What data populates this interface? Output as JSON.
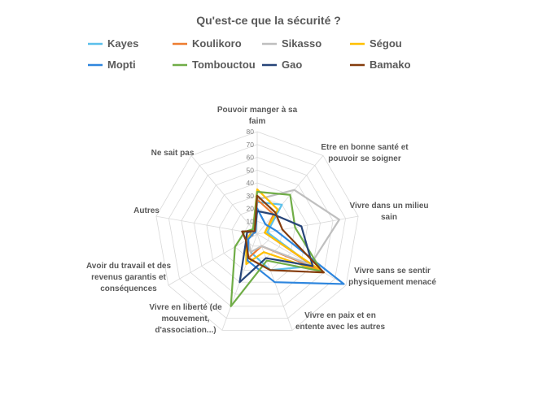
{
  "chart_data": {
    "type": "radar",
    "title": "Qu'est-ce que la sécurité ?",
    "axes": [
      "Pouvoir manger à sa faim",
      "Etre en bonne santé et pouvoir se soigner",
      "Vivre dans un milieu sain",
      "Vivre sans se sentir physiquement menacé",
      "Vivre en paix et en entente avec les autres",
      "Vivre en liberté (de mouvement, d'association...)",
      "Avoir du travail et des revenus garantis et conséquences",
      "Autres",
      "Ne sait pas"
    ],
    "r_ticks": [
      "0",
      "10",
      "20",
      "30",
      "40",
      "50",
      "60",
      "70",
      "80"
    ],
    "r_max": 80,
    "grid": true,
    "legend_position": "top",
    "series": [
      {
        "name": "Kayes",
        "color": "#5bc0eb",
        "values": [
          25,
          30,
          8,
          50,
          30,
          15,
          10,
          12,
          2
        ]
      },
      {
        "name": "Koulikoro",
        "color": "#ed7d31",
        "values": [
          27,
          20,
          6,
          55,
          10,
          20,
          10,
          8,
          3
        ]
      },
      {
        "name": "Sikasso",
        "color": "#bfbfbf",
        "values": [
          27,
          45,
          65,
          48,
          10,
          15,
          8,
          5,
          2
        ]
      },
      {
        "name": "Ségou",
        "color": "#ffc000",
        "values": [
          35,
          25,
          6,
          60,
          15,
          25,
          10,
          5,
          5
        ]
      },
      {
        "name": "Mopti",
        "color": "#2e86de",
        "values": [
          20,
          10,
          15,
          78,
          40,
          22,
          8,
          3,
          2
        ]
      },
      {
        "name": "Tombouctou",
        "color": "#70ad47",
        "values": [
          33,
          40,
          30,
          58,
          22,
          60,
          20,
          10,
          5
        ]
      },
      {
        "name": "Gao",
        "color": "#264478",
        "values": [
          18,
          20,
          35,
          50,
          20,
          40,
          10,
          8,
          3
        ]
      },
      {
        "name": "Bamako",
        "color": "#843c0c",
        "values": [
          30,
          22,
          20,
          60,
          30,
          20,
          10,
          12,
          3
        ]
      }
    ]
  },
  "legend": {
    "items": [
      "Kayes",
      "Koulikoro",
      "Sikasso",
      "Ségou",
      "Mopti",
      "Tombouctou",
      "Gao",
      "Bamako"
    ]
  }
}
